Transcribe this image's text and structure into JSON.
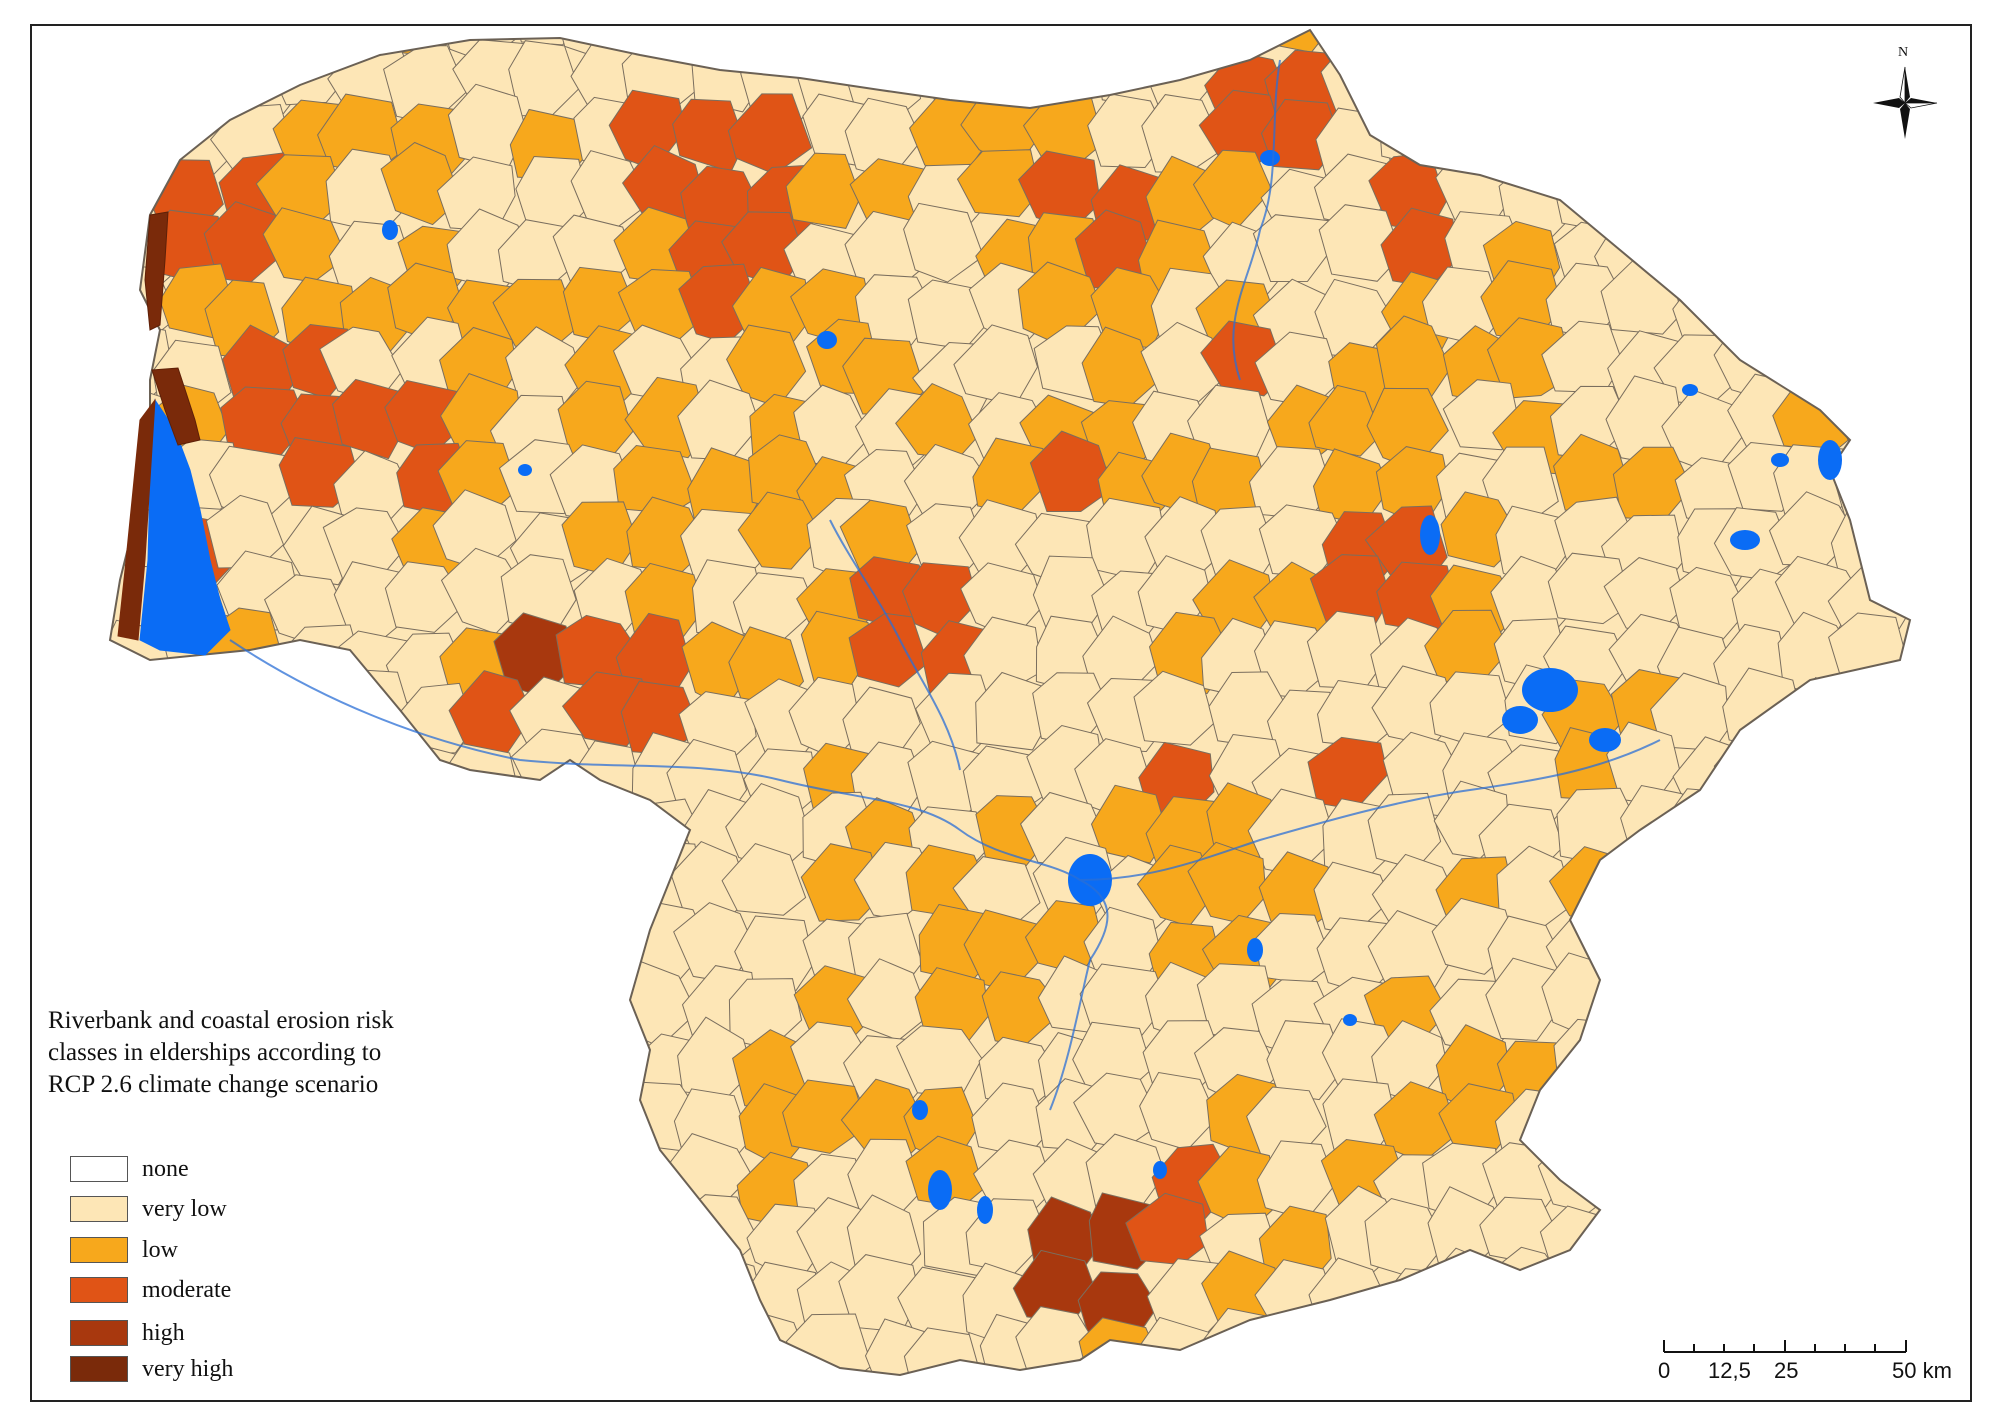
{
  "title": "Riverbank and coastal erosion risk classes in elderships according to RCP 2.6 climate change scenario",
  "title_lines": [
    "Riverbank and coastal erosion risk",
    "classes in elderships according to",
    "RCP 2.6 climate change scenario"
  ],
  "legend": [
    {
      "label": "none",
      "color": "#ffffff"
    },
    {
      "label": "very low",
      "color": "#fde6b6"
    },
    {
      "label": "low",
      "color": "#f7a81c"
    },
    {
      "label": "moderate",
      "color": "#e05416"
    },
    {
      "label": "high",
      "color": "#a8380e"
    },
    {
      "label": "very high",
      "color": "#7a2a0a"
    }
  ],
  "water_color": "#0a6cf5",
  "border_color": "#7a6e5e",
  "north_label": "N",
  "scale": {
    "ticks": [
      "0",
      "12,5",
      "25",
      "50 km"
    ]
  }
}
